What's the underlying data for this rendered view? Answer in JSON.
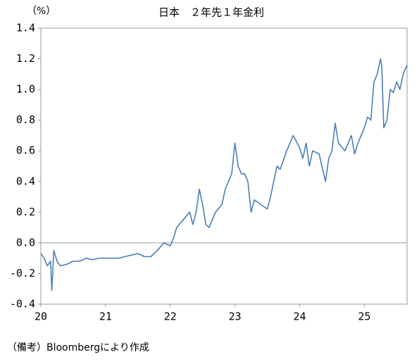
{
  "chart_data": {
    "type": "line",
    "title": "日本　２年先１年金利",
    "y_unit": "（%）",
    "source": "（備考）Bloombergにより作成",
    "series": [
      {
        "name": "2年先1年金利",
        "color": "#4a7ebb",
        "x": [
          20.0,
          20.05,
          20.1,
          20.15,
          20.17,
          20.2,
          20.25,
          20.3,
          20.4,
          20.5,
          20.6,
          20.7,
          20.8,
          20.9,
          21.0,
          21.1,
          21.2,
          21.3,
          21.4,
          21.5,
          21.6,
          21.7,
          21.8,
          21.9,
          22.0,
          22.05,
          22.1,
          22.2,
          22.3,
          22.35,
          22.4,
          22.45,
          22.5,
          22.55,
          22.6,
          22.7,
          22.8,
          22.85,
          22.9,
          22.95,
          23.0,
          23.05,
          23.1,
          23.15,
          23.2,
          23.25,
          23.3,
          23.4,
          23.5,
          23.55,
          23.6,
          23.65,
          23.7,
          23.8,
          23.9,
          24.0,
          24.05,
          24.1,
          24.15,
          24.2,
          24.3,
          24.4,
          24.45,
          24.5,
          24.55,
          24.6,
          24.7,
          24.8,
          24.85,
          24.9,
          25.0,
          25.05,
          25.1,
          25.15,
          25.2,
          25.25,
          25.27,
          25.3,
          25.35,
          25.4,
          25.45,
          25.5,
          25.55,
          25.6,
          25.66
        ],
        "values": [
          -0.07,
          -0.1,
          -0.15,
          -0.12,
          -0.31,
          -0.05,
          -0.12,
          -0.15,
          -0.14,
          -0.12,
          -0.12,
          -0.1,
          -0.11,
          -0.1,
          -0.1,
          -0.1,
          -0.1,
          -0.09,
          -0.08,
          -0.07,
          -0.09,
          -0.09,
          -0.05,
          0.0,
          -0.02,
          0.03,
          0.1,
          0.15,
          0.2,
          0.12,
          0.2,
          0.35,
          0.25,
          0.12,
          0.1,
          0.2,
          0.25,
          0.35,
          0.4,
          0.45,
          0.65,
          0.5,
          0.45,
          0.45,
          0.4,
          0.2,
          0.28,
          0.25,
          0.22,
          0.3,
          0.4,
          0.5,
          0.48,
          0.6,
          0.7,
          0.62,
          0.55,
          0.65,
          0.5,
          0.6,
          0.58,
          0.4,
          0.55,
          0.6,
          0.78,
          0.65,
          0.6,
          0.7,
          0.58,
          0.65,
          0.75,
          0.82,
          0.8,
          1.05,
          1.1,
          1.2,
          1.15,
          0.75,
          0.8,
          1.0,
          0.98,
          1.05,
          1.0,
          1.1,
          1.16
        ]
      }
    ],
    "xlim": [
      20,
      25.66
    ],
    "xticks": [
      20,
      21,
      22,
      23,
      24,
      25
    ],
    "ylim": [
      -0.4,
      1.4
    ],
    "yticks": [
      -0.4,
      -0.2,
      {
        "value": 0,
        "label": "0.0"
      },
      0.2,
      0.4,
      0.6,
      0.8,
      {
        "value": 1,
        "label": "1.0"
      },
      1.2,
      1.4
    ],
    "zero_line": true
  }
}
